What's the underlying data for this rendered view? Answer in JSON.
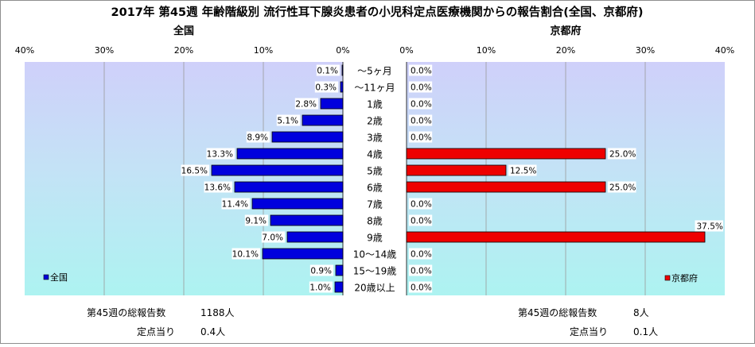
{
  "title": "2017年 第45週 年齢階級別 流行性耳下腺炎患者の小児科定点医療機関からの報告割合(全国、京都府)",
  "chart_data": [
    {
      "type": "bar",
      "orientation": "horizontal",
      "direction": "right-to-left",
      "title": "全国",
      "categories": [
        "〜5ヶ月",
        "〜11ヶ月",
        "1歳",
        "2歳",
        "3歳",
        "4歳",
        "5歳",
        "6歳",
        "7歳",
        "8歳",
        "9歳",
        "10〜14歳",
        "15〜19歳",
        "20歳以上"
      ],
      "series": [
        {
          "name": "全国",
          "values": [
            0.1,
            0.3,
            2.8,
            5.1,
            8.9,
            13.3,
            16.5,
            13.6,
            11.4,
            9.1,
            7.0,
            10.1,
            0.9,
            1.0
          ],
          "labels": [
            "0.1%",
            "0.3%",
            "2.8%",
            "5.1%",
            "8.9%",
            "13.3%",
            "16.5%",
            "13.6%",
            "11.4%",
            "9.1%",
            "7.0%",
            "10.1%",
            "0.9%",
            "1.0%"
          ],
          "color": "#0000dd"
        }
      ],
      "xlim": [
        0,
        40
      ],
      "tick_labels": [
        "40%",
        "30%",
        "20%",
        "10%",
        "0%"
      ],
      "grid": true,
      "legend": "bottom-left"
    },
    {
      "type": "bar",
      "orientation": "horizontal",
      "direction": "left-to-right",
      "title": "京都府",
      "categories": [
        "〜5ヶ月",
        "〜11ヶ月",
        "1歳",
        "2歳",
        "3歳",
        "4歳",
        "5歳",
        "6歳",
        "7歳",
        "8歳",
        "9歳",
        "10〜14歳",
        "15〜19歳",
        "20歳以上"
      ],
      "series": [
        {
          "name": "京都府",
          "values": [
            0.0,
            0.0,
            0.0,
            0.0,
            0.0,
            25.0,
            12.5,
            25.0,
            0.0,
            0.0,
            37.5,
            0.0,
            0.0,
            0.0
          ],
          "labels": [
            "0.0%",
            "0.0%",
            "0.0%",
            "0.0%",
            "0.0%",
            "25.0%",
            "12.5%",
            "25.0%",
            "0.0%",
            "0.0%",
            "37.5%",
            "0.0%",
            "0.0%",
            "0.0%"
          ],
          "color": "#ee0000"
        }
      ],
      "xlim": [
        0,
        40
      ],
      "tick_labels": [
        "0%",
        "10%",
        "20%",
        "30%",
        "40%"
      ],
      "grid": true,
      "legend": "bottom-right"
    }
  ],
  "summary": {
    "national": {
      "total_label": "第45週の総報告数",
      "total_value": "1188人",
      "per_label": "定点当り",
      "per_value": "0.4人"
    },
    "kyoto": {
      "total_label": "第45週の総報告数",
      "total_value": "8人",
      "per_label": "定点当り",
      "per_value": "0.1人"
    }
  },
  "colors": {
    "national_bar": "#0000dd",
    "kyoto_bar": "#ee0000"
  }
}
